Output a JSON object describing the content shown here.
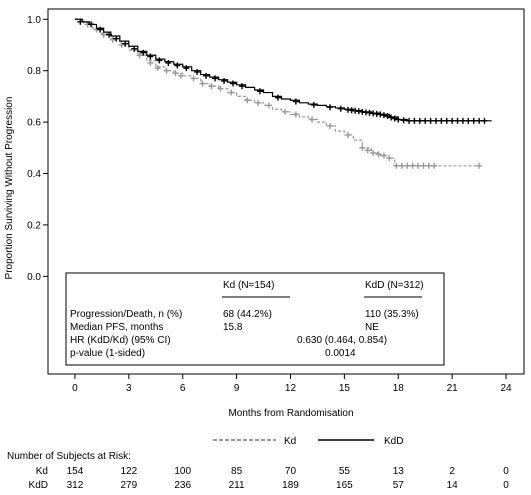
{
  "chart_data": {
    "type": "line",
    "subtype": "kaplan-meier",
    "ylabel": "Proportion Surviving Without Progression",
    "xlabel": "Months from Randomisation",
    "xlim": [
      -1.5,
      25
    ],
    "ylim": [
      -0.38,
      1.04
    ],
    "xticks": [
      0,
      3,
      6,
      9,
      12,
      15,
      18,
      21,
      24
    ],
    "yticks": [
      0.0,
      0.2,
      0.4,
      0.6,
      0.8,
      1.0
    ],
    "ytick_labels": [
      "0.0",
      "0.2",
      "0.4",
      "0.6",
      "0.8",
      "1.0"
    ],
    "grid": false,
    "legend_position": "bottom",
    "series": [
      {
        "name": "Kd",
        "line_style": "dashed",
        "color": "#999999",
        "steps": [
          [
            0,
            1.0
          ],
          [
            0.5,
            0.985
          ],
          [
            1.0,
            0.965
          ],
          [
            1.5,
            0.945
          ],
          [
            2.0,
            0.925
          ],
          [
            2.5,
            0.905
          ],
          [
            3.0,
            0.88
          ],
          [
            3.5,
            0.86
          ],
          [
            4.0,
            0.84
          ],
          [
            4.5,
            0.815
          ],
          [
            5.0,
            0.8
          ],
          [
            5.5,
            0.79
          ],
          [
            6.0,
            0.78
          ],
          [
            6.5,
            0.77
          ],
          [
            7.0,
            0.75
          ],
          [
            7.5,
            0.74
          ],
          [
            8.0,
            0.73
          ],
          [
            8.5,
            0.715
          ],
          [
            9.0,
            0.7
          ],
          [
            9.5,
            0.685
          ],
          [
            10.0,
            0.675
          ],
          [
            10.5,
            0.665
          ],
          [
            11.0,
            0.65
          ],
          [
            11.5,
            0.64
          ],
          [
            12.0,
            0.63
          ],
          [
            12.5,
            0.62
          ],
          [
            13.0,
            0.61
          ],
          [
            13.5,
            0.6
          ],
          [
            14.0,
            0.585
          ],
          [
            14.5,
            0.565
          ],
          [
            15.0,
            0.55
          ],
          [
            15.5,
            0.53
          ],
          [
            16.0,
            0.5
          ],
          [
            16.5,
            0.48
          ],
          [
            17.0,
            0.47
          ],
          [
            17.5,
            0.46
          ],
          [
            17.8,
            0.43
          ],
          [
            22.5,
            0.43
          ]
        ],
        "censored": [
          [
            0.7,
            0.98
          ],
          [
            1.2,
            0.96
          ],
          [
            1.6,
            0.94
          ],
          [
            2.1,
            0.92
          ],
          [
            2.6,
            0.9
          ],
          [
            3.6,
            0.86
          ],
          [
            4.2,
            0.83
          ],
          [
            4.6,
            0.81
          ],
          [
            5.1,
            0.8
          ],
          [
            5.6,
            0.79
          ],
          [
            5.9,
            0.78
          ],
          [
            6.6,
            0.77
          ],
          [
            7.1,
            0.75
          ],
          [
            7.6,
            0.74
          ],
          [
            8.1,
            0.73
          ],
          [
            8.7,
            0.715
          ],
          [
            9.6,
            0.685
          ],
          [
            10.2,
            0.675
          ],
          [
            10.8,
            0.665
          ],
          [
            11.7,
            0.64
          ],
          [
            12.3,
            0.63
          ],
          [
            13.2,
            0.61
          ],
          [
            14.2,
            0.585
          ],
          [
            15.2,
            0.55
          ],
          [
            16.0,
            0.5
          ],
          [
            16.3,
            0.49
          ],
          [
            16.6,
            0.48
          ],
          [
            16.9,
            0.475
          ],
          [
            17.2,
            0.47
          ],
          [
            17.5,
            0.46
          ],
          [
            17.9,
            0.43
          ],
          [
            18.2,
            0.43
          ],
          [
            18.5,
            0.43
          ],
          [
            18.8,
            0.43
          ],
          [
            19.1,
            0.43
          ],
          [
            19.4,
            0.43
          ],
          [
            19.7,
            0.43
          ],
          [
            20.0,
            0.43
          ],
          [
            22.5,
            0.43
          ]
        ]
      },
      {
        "name": "KdD",
        "line_style": "solid",
        "color": "#000000",
        "steps": [
          [
            0,
            1.0
          ],
          [
            0.4,
            0.99
          ],
          [
            0.8,
            0.98
          ],
          [
            1.2,
            0.965
          ],
          [
            1.6,
            0.95
          ],
          [
            2.0,
            0.935
          ],
          [
            2.5,
            0.915
          ],
          [
            3.0,
            0.895
          ],
          [
            3.5,
            0.875
          ],
          [
            4.0,
            0.86
          ],
          [
            4.5,
            0.845
          ],
          [
            5.0,
            0.835
          ],
          [
            5.5,
            0.825
          ],
          [
            6.0,
            0.815
          ],
          [
            6.5,
            0.8
          ],
          [
            7.0,
            0.785
          ],
          [
            7.5,
            0.775
          ],
          [
            8.0,
            0.765
          ],
          [
            8.5,
            0.755
          ],
          [
            9.0,
            0.745
          ],
          [
            9.5,
            0.735
          ],
          [
            10.0,
            0.725
          ],
          [
            10.5,
            0.715
          ],
          [
            11.0,
            0.7
          ],
          [
            11.5,
            0.69
          ],
          [
            12.0,
            0.685
          ],
          [
            12.5,
            0.675
          ],
          [
            13.0,
            0.67
          ],
          [
            13.5,
            0.665
          ],
          [
            14.0,
            0.66
          ],
          [
            14.5,
            0.655
          ],
          [
            15.0,
            0.65
          ],
          [
            15.5,
            0.645
          ],
          [
            16.0,
            0.64
          ],
          [
            16.5,
            0.635
          ],
          [
            17.0,
            0.63
          ],
          [
            17.5,
            0.62
          ],
          [
            18.0,
            0.61
          ],
          [
            18.5,
            0.605
          ],
          [
            23.2,
            0.605
          ]
        ],
        "censored": [
          [
            0.3,
            0.99
          ],
          [
            0.9,
            0.98
          ],
          [
            1.4,
            0.96
          ],
          [
            1.9,
            0.94
          ],
          [
            2.3,
            0.925
          ],
          [
            2.8,
            0.905
          ],
          [
            3.3,
            0.885
          ],
          [
            3.8,
            0.87
          ],
          [
            4.2,
            0.855
          ],
          [
            4.7,
            0.84
          ],
          [
            5.2,
            0.83
          ],
          [
            5.7,
            0.82
          ],
          [
            6.2,
            0.81
          ],
          [
            6.8,
            0.795
          ],
          [
            7.3,
            0.78
          ],
          [
            7.8,
            0.77
          ],
          [
            8.3,
            0.76
          ],
          [
            8.8,
            0.75
          ],
          [
            9.3,
            0.74
          ],
          [
            10.3,
            0.72
          ],
          [
            11.3,
            0.695
          ],
          [
            12.3,
            0.68
          ],
          [
            13.3,
            0.667
          ],
          [
            14.2,
            0.658
          ],
          [
            14.8,
            0.652
          ],
          [
            15.2,
            0.648
          ],
          [
            15.4,
            0.646
          ],
          [
            15.6,
            0.644
          ],
          [
            15.8,
            0.642
          ],
          [
            16.0,
            0.64
          ],
          [
            16.2,
            0.638
          ],
          [
            16.4,
            0.636
          ],
          [
            16.6,
            0.634
          ],
          [
            16.8,
            0.632
          ],
          [
            17.0,
            0.63
          ],
          [
            17.2,
            0.627
          ],
          [
            17.4,
            0.623
          ],
          [
            17.6,
            0.618
          ],
          [
            17.8,
            0.614
          ],
          [
            18.0,
            0.61
          ],
          [
            18.3,
            0.607
          ],
          [
            18.6,
            0.605
          ],
          [
            18.9,
            0.605
          ],
          [
            19.2,
            0.605
          ],
          [
            19.5,
            0.605
          ],
          [
            19.8,
            0.605
          ],
          [
            20.1,
            0.605
          ],
          [
            20.4,
            0.605
          ],
          [
            20.7,
            0.605
          ],
          [
            21.0,
            0.605
          ],
          [
            21.3,
            0.605
          ],
          [
            21.6,
            0.605
          ],
          [
            21.9,
            0.605
          ],
          [
            22.2,
            0.605
          ],
          [
            22.5,
            0.605
          ],
          [
            22.8,
            0.605
          ]
        ]
      }
    ],
    "inset_table": {
      "columns": [
        "Kd (N=154)",
        "KdD (N=312)"
      ],
      "rows": [
        {
          "label": "Progression/Death, n (%)",
          "kd": "68 (44.2%)",
          "kdd": "110 (35.3%)",
          "span": ""
        },
        {
          "label": "Median PFS, months",
          "kd": "15.8",
          "kdd": "NE",
          "span": ""
        },
        {
          "label": "HR (KdD/Kd) (95% CI)",
          "kd": "",
          "kdd": "",
          "span": "0.630 (0.464, 0.854)"
        },
        {
          "label": "p-value (1-sided)",
          "kd": "",
          "kdd": "",
          "span": "0.0014"
        }
      ]
    },
    "risk_table": {
      "title": "Number of Subjects at Risk:",
      "rows": [
        {
          "name": "Kd",
          "values": [
            "154",
            "122",
            "100",
            "85",
            "70",
            "55",
            "13",
            "2",
            "0"
          ]
        },
        {
          "name": "KdD",
          "values": [
            "312",
            "279",
            "236",
            "211",
            "189",
            "165",
            "57",
            "14",
            "0"
          ]
        }
      ]
    }
  }
}
